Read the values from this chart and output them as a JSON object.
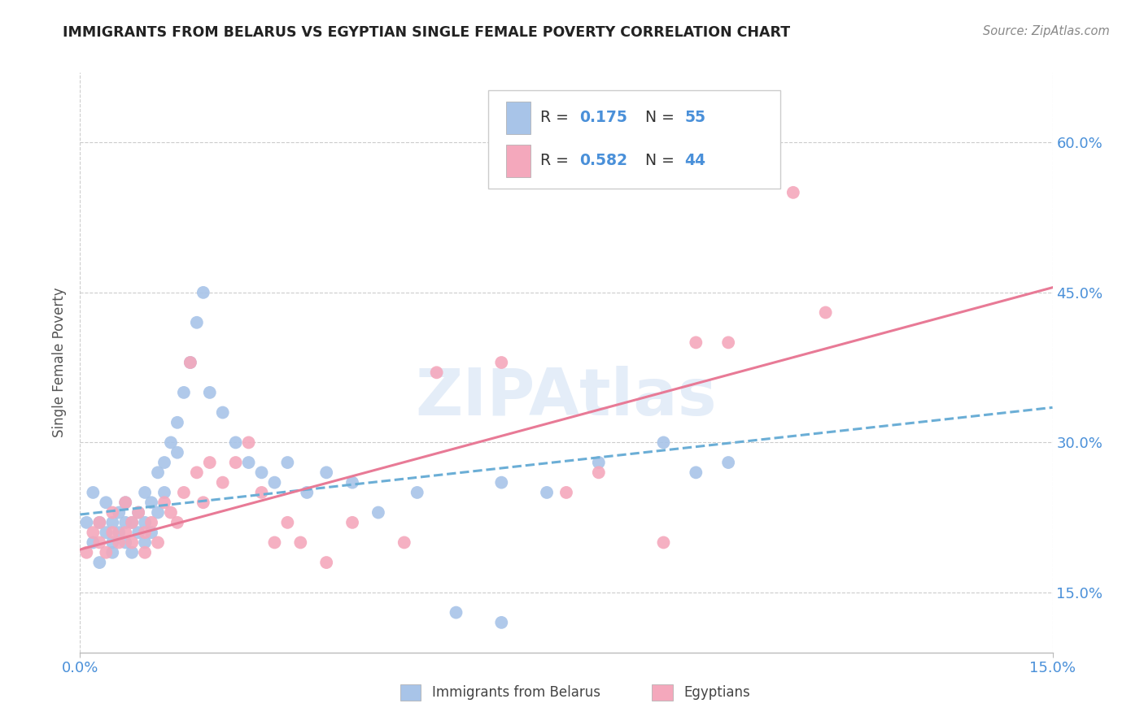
{
  "title": "IMMIGRANTS FROM BELARUS VS EGYPTIAN SINGLE FEMALE POVERTY CORRELATION CHART",
  "source": "Source: ZipAtlas.com",
  "ylabel": "Single Female Poverty",
  "yticks_labels": [
    "15.0%",
    "30.0%",
    "45.0%",
    "60.0%"
  ],
  "ytick_vals": [
    0.15,
    0.3,
    0.45,
    0.6
  ],
  "xtick_left_label": "0.0%",
  "xtick_right_label": "15.0%",
  "xlim": [
    0.0,
    0.15
  ],
  "ylim": [
    0.09,
    0.67
  ],
  "watermark": "ZIPAtlas",
  "color_blue": "#a8c4e8",
  "color_pink": "#f4a8bc",
  "color_blue_line": "#6baed6",
  "color_pink_line": "#e87a96",
  "color_blue_text": "#4a90d9",
  "legend_label1": "Immigrants from Belarus",
  "legend_label2": "Egyptians",
  "blue_scatter_x": [
    0.001,
    0.002,
    0.002,
    0.003,
    0.003,
    0.004,
    0.004,
    0.005,
    0.005,
    0.005,
    0.006,
    0.006,
    0.007,
    0.007,
    0.007,
    0.008,
    0.008,
    0.009,
    0.009,
    0.01,
    0.01,
    0.01,
    0.011,
    0.011,
    0.012,
    0.012,
    0.013,
    0.013,
    0.014,
    0.015,
    0.015,
    0.016,
    0.017,
    0.018,
    0.019,
    0.02,
    0.022,
    0.024,
    0.026,
    0.028,
    0.03,
    0.032,
    0.035,
    0.038,
    0.042,
    0.046,
    0.052,
    0.058,
    0.065,
    0.072,
    0.08,
    0.09,
    0.095,
    0.1,
    0.065
  ],
  "blue_scatter_y": [
    0.22,
    0.2,
    0.25,
    0.22,
    0.18,
    0.21,
    0.24,
    0.2,
    0.22,
    0.19,
    0.21,
    0.23,
    0.22,
    0.2,
    0.24,
    0.22,
    0.19,
    0.21,
    0.23,
    0.22,
    0.25,
    0.2,
    0.21,
    0.24,
    0.23,
    0.27,
    0.25,
    0.28,
    0.3,
    0.32,
    0.29,
    0.35,
    0.38,
    0.42,
    0.45,
    0.35,
    0.33,
    0.3,
    0.28,
    0.27,
    0.26,
    0.28,
    0.25,
    0.27,
    0.26,
    0.23,
    0.25,
    0.13,
    0.26,
    0.25,
    0.28,
    0.3,
    0.27,
    0.28,
    0.12
  ],
  "pink_scatter_x": [
    0.001,
    0.002,
    0.003,
    0.003,
    0.004,
    0.005,
    0.005,
    0.006,
    0.007,
    0.007,
    0.008,
    0.008,
    0.009,
    0.01,
    0.01,
    0.011,
    0.012,
    0.013,
    0.014,
    0.015,
    0.016,
    0.017,
    0.018,
    0.019,
    0.02,
    0.022,
    0.024,
    0.026,
    0.028,
    0.03,
    0.032,
    0.034,
    0.038,
    0.042,
    0.05,
    0.055,
    0.065,
    0.075,
    0.08,
    0.09,
    0.095,
    0.1,
    0.11,
    0.115
  ],
  "pink_scatter_y": [
    0.19,
    0.21,
    0.2,
    0.22,
    0.19,
    0.21,
    0.23,
    0.2,
    0.21,
    0.24,
    0.22,
    0.2,
    0.23,
    0.21,
    0.19,
    0.22,
    0.2,
    0.24,
    0.23,
    0.22,
    0.25,
    0.38,
    0.27,
    0.24,
    0.28,
    0.26,
    0.28,
    0.3,
    0.25,
    0.2,
    0.22,
    0.2,
    0.18,
    0.22,
    0.2,
    0.37,
    0.38,
    0.25,
    0.27,
    0.2,
    0.4,
    0.4,
    0.55,
    0.43
  ],
  "blue_trend_x": [
    0.0,
    0.15
  ],
  "blue_trend_y": [
    0.228,
    0.335
  ],
  "pink_trend_x": [
    0.0,
    0.15
  ],
  "pink_trend_y": [
    0.193,
    0.455
  ]
}
